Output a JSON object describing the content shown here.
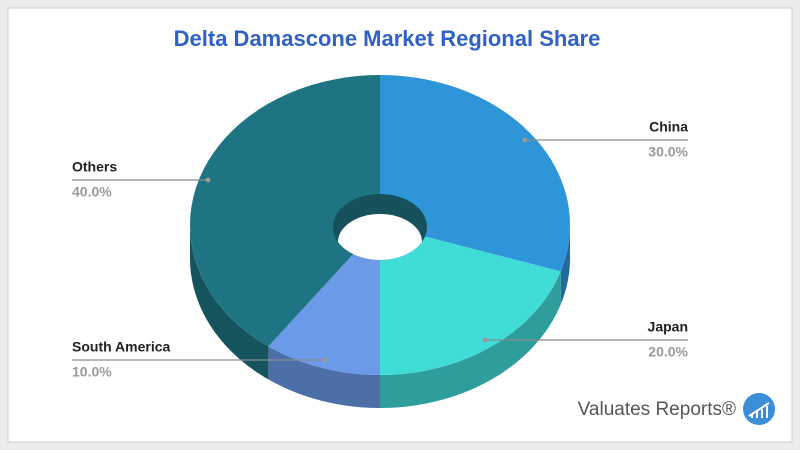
{
  "chart_data": {
    "type": "pie",
    "title": "Delta Damascone Market Regional Share",
    "categories": [
      "China",
      "Japan",
      "South America",
      "Others"
    ],
    "values": [
      30,
      20,
      10,
      40
    ],
    "value_labels": [
      "30.0%",
      "20.0%",
      "10.0%",
      "40.0%"
    ],
    "colors": [
      "#2e95d9",
      "#40dcd8",
      "#6b9ae8",
      "#1e7482"
    ],
    "watermark": "Valuates Reports®"
  }
}
